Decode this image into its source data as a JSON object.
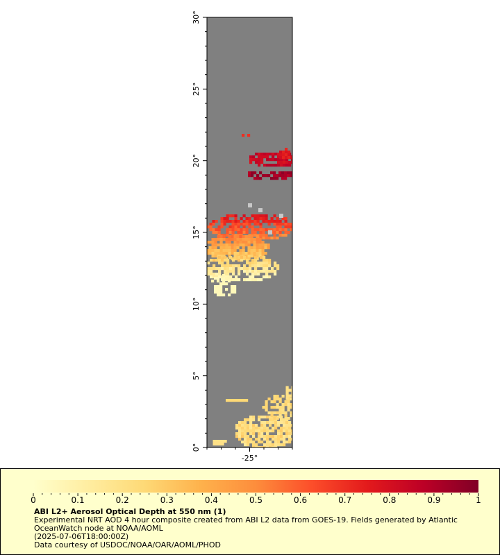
{
  "map": {
    "latitude_axis": {
      "unit": "°",
      "labels": [
        "0°",
        "5°",
        "10°",
        "15°",
        "20°",
        "25°",
        "30°"
      ],
      "min": 0,
      "max": 30
    },
    "longitude_axis": {
      "labels": [
        "-25°"
      ],
      "longitude_min": -28,
      "longitude_max": -22
    },
    "colors": {
      "no_data": "#808080",
      "frame": "#000000",
      "no_data_patch": "#c8c8c8"
    }
  },
  "colorbar": {
    "min": 0,
    "max": 1,
    "tick_labels": [
      "0",
      "0.1",
      "0.2",
      "0.3",
      "0.4",
      "0.5",
      "0.6",
      "0.7",
      "0.8",
      "0.9",
      "1"
    ],
    "colors": [
      "#ffffcc",
      "#ffeda0",
      "#fed976",
      "#feb24c",
      "#fd8d3c",
      "#fc4e2a",
      "#e31a1c",
      "#bd0026",
      "#800026"
    ]
  },
  "caption": {
    "title": "ABI L2+ Aerosol Optical Depth at 550 nm (1)",
    "line1": "Experimental NRT AOD 4 hour composite created from ABI L2 data from GOES-19. Fields generated by Atlantic OceanWatch node at NOAA/AOML",
    "line2": "(2025-07-06T18:00:00Z)",
    "line3": "Data courtesy of USDOC/NOAA/OAR/AOML/PHOD"
  }
}
